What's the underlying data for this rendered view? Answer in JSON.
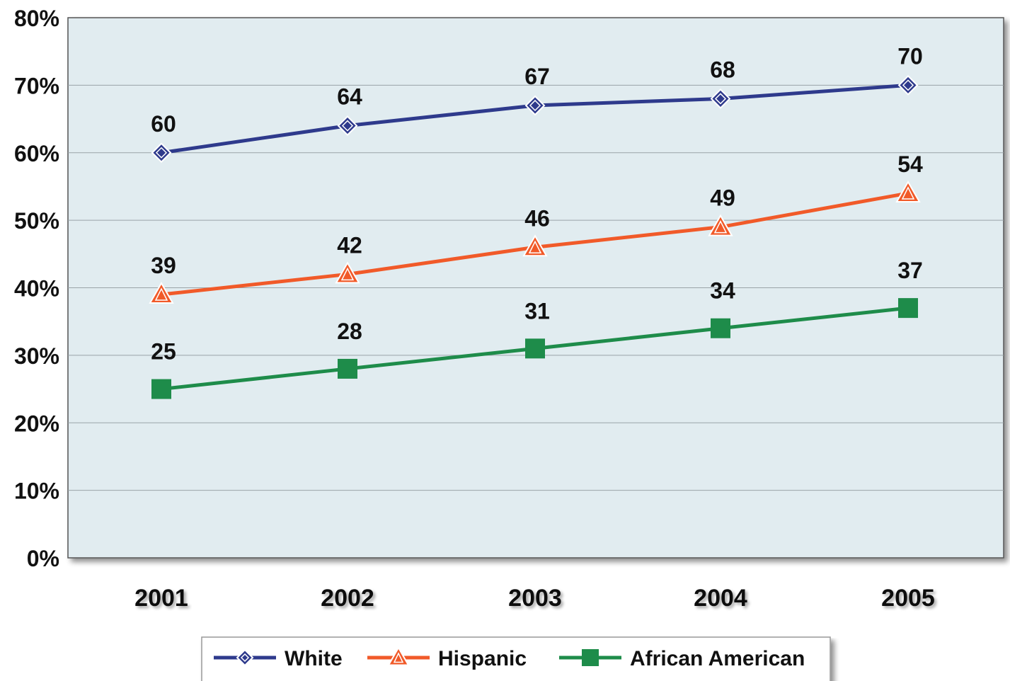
{
  "chart_data": {
    "type": "line",
    "categories": [
      "2001",
      "2002",
      "2003",
      "2004",
      "2005"
    ],
    "ylim": [
      0,
      80
    ],
    "yticks": [
      "0%",
      "10%",
      "20%",
      "30%",
      "40%",
      "50%",
      "60%",
      "70%",
      "80%"
    ],
    "grid": true,
    "legend_position": "bottom",
    "series": [
      {
        "name": "White",
        "values": [
          60,
          64,
          67,
          68,
          70
        ],
        "labels": [
          "60",
          "64",
          "67",
          "68",
          "70"
        ],
        "color": "#2e3a8c",
        "marker": "diamond"
      },
      {
        "name": "Hispanic",
        "values": [
          39,
          42,
          46,
          49,
          54
        ],
        "labels": [
          "39",
          "42",
          "46",
          "49",
          "54"
        ],
        "color": "#f15a29",
        "marker": "triangle"
      },
      {
        "name": "African American",
        "values": [
          25,
          28,
          31,
          34,
          37
        ],
        "labels": [
          "25",
          "28",
          "31",
          "34",
          "37"
        ],
        "color": "#1e8c4a",
        "marker": "square"
      }
    ]
  },
  "colors": {
    "plot_background": "#e1ecf0",
    "gridline": "#9aa3a8",
    "axis": "#555555"
  }
}
